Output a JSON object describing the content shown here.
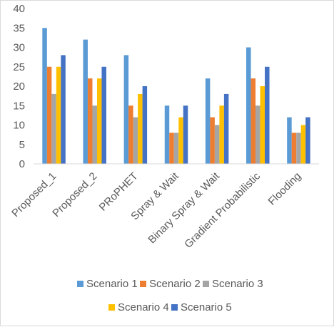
{
  "chart_data": {
    "type": "bar",
    "categories": [
      "Proposed_1",
      "Proposed_2",
      "PRoPHET",
      "Spray & Wait",
      "Binary Spray & Wait",
      "Gradient Probabilistic",
      "Flooding"
    ],
    "series": [
      {
        "name": "Scenario 1",
        "color": "#5b9bd5",
        "values": [
          35,
          32,
          28,
          15,
          22,
          30,
          12
        ]
      },
      {
        "name": "Scenario 2",
        "color": "#ed7d31",
        "values": [
          25,
          22,
          15,
          8,
          12,
          22,
          8
        ]
      },
      {
        "name": "Scenario 3",
        "color": "#a5a5a5",
        "values": [
          18,
          15,
          12,
          8,
          10,
          15,
          8
        ]
      },
      {
        "name": "Scenario 4",
        "color": "#ffc000",
        "values": [
          25,
          22,
          18,
          12,
          15,
          20,
          10
        ]
      },
      {
        "name": "Scenario 5",
        "color": "#4472c4",
        "values": [
          28,
          25,
          20,
          15,
          18,
          25,
          12
        ]
      }
    ],
    "ylim": [
      0,
      40
    ],
    "yticks": [
      "0",
      "5",
      "10",
      "15",
      "20",
      "25",
      "30",
      "35",
      "40"
    ],
    "grid": false,
    "legend_position": "bottom"
  }
}
